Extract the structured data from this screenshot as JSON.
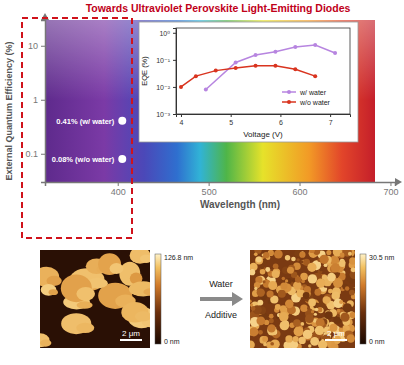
{
  "chart_data": [
    {
      "type": "scatter",
      "title": "Towards Ultraviolet Perovskite Light-Emitting Diodes",
      "x_label": "Wavelength (nm)",
      "y_label": "External Quantum Efficiency (%)",
      "x": [
        405,
        405
      ],
      "values": [
        0.41,
        0.08
      ],
      "value_labels": [
        "0.41% (w/ water)",
        "0.08% (w/o water)"
      ],
      "data_labels": true,
      "color": "#ffffff",
      "marker": "circle",
      "log": "y",
      "grid": false,
      "xlim": [
        320,
        705
      ],
      "xticks": [
        400,
        500,
        600,
        700
      ],
      "ylim": [
        0.03,
        30
      ],
      "yticks": [
        0.1,
        1,
        10
      ]
    },
    {
      "type": "line",
      "x_label": "Voltage (V)",
      "y_label": "EQE (%)",
      "log": "y",
      "grid": false,
      "legend": "lower-right",
      "xlim": [
        3.9,
        7.4
      ],
      "xticks": [
        4,
        5,
        6,
        7
      ],
      "ylim": [
        0.001,
        1.5
      ],
      "yticks": [
        {
          "value": 0.001,
          "label": "10⁻³"
        },
        {
          "value": 0.01,
          "label": "10⁻²"
        },
        {
          "value": 0.1,
          "label": "10⁻¹"
        },
        {
          "value": 1,
          "label": "10⁰"
        }
      ],
      "series": [
        {
          "name": "w/ water",
          "color": "#b785e0",
          "marker": "circle",
          "x": [
            4.5,
            5.1,
            5.5,
            5.9,
            6.3,
            6.7,
            7.1
          ],
          "values": [
            0.008,
            0.08,
            0.15,
            0.2,
            0.3,
            0.35,
            0.18
          ]
        },
        {
          "name": "w/o water",
          "color": "#d9341f",
          "marker": "circle",
          "x": [
            4.0,
            4.3,
            4.7,
            5.1,
            5.5,
            5.9,
            6.3,
            6.7
          ],
          "values": [
            0.01,
            0.025,
            0.04,
            0.05,
            0.06,
            0.06,
            0.045,
            0.025
          ]
        }
      ]
    }
  ],
  "afm": {
    "images": [
      {
        "colorbar_max": "126.8 nm",
        "colorbar_min": "0 nm",
        "scale_bar": "2 μm"
      },
      {
        "colorbar_max": "30.5 nm",
        "colorbar_min": "0 nm",
        "scale_bar": "2 μm"
      }
    ],
    "arrow_labels": [
      "Water",
      "Additive"
    ]
  }
}
